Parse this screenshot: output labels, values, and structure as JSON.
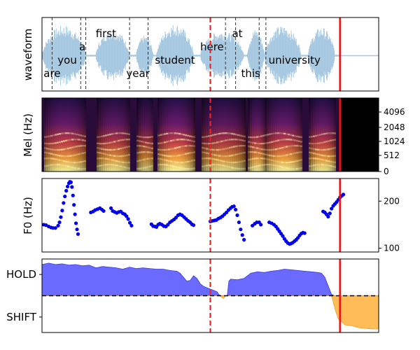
{
  "colors": {
    "waveform": "#a6c8e0",
    "word_boundary": "#333333",
    "current_time_marker": "#ee2222",
    "end_marker": "#ee1111",
    "f0_points": "#0000ee",
    "hold_fill": "#5050ff",
    "shift_fill": "#ffb545",
    "threshold_line": "#000000",
    "spectrogram_background": "#000000"
  },
  "chart_data": [
    {
      "type": "area",
      "panel": "waveform",
      "ylabel": "waveform",
      "x_range": [
        0,
        1
      ],
      "words": [
        {
          "text": "are",
          "x": 0.03
        },
        {
          "text": "you",
          "x": 0.075
        },
        {
          "text": "a",
          "x": 0.12
        },
        {
          "text": "first",
          "x": 0.19
        },
        {
          "text": "year",
          "x": 0.285
        },
        {
          "text": "student",
          "x": 0.395
        },
        {
          "text": "here",
          "x": 0.505
        },
        {
          "text": "at",
          "x": 0.58
        },
        {
          "text": "this",
          "x": 0.62
        },
        {
          "text": "university",
          "x": 0.75
        }
      ],
      "word_boundaries": [
        0.03,
        0.115,
        0.13,
        0.26,
        0.315,
        0.545,
        0.575,
        0.645,
        0.665
      ],
      "current_time_marker": 0.5,
      "end_marker": 0.885
    },
    {
      "type": "heatmap",
      "panel": "mel-spectrogram",
      "ylabel": "Mel (Hz)",
      "y_ticks": [
        "0",
        "512",
        "1024",
        "2048",
        "4096"
      ],
      "x_range": [
        0,
        1
      ],
      "current_time_marker": 0.5,
      "end_marker": 0.885
    },
    {
      "type": "scatter",
      "panel": "f0",
      "ylabel": "F0 (Hz)",
      "y_ticks": [
        100,
        200
      ],
      "ylim": [
        92,
        248
      ],
      "x_range": [
        0,
        1
      ],
      "series": [
        {
          "points": [
            [
              0.005,
              150
            ],
            [
              0.012,
              149
            ],
            [
              0.02,
              146
            ],
            [
              0.027,
              144
            ],
            [
              0.033,
              143
            ],
            [
              0.04,
              143
            ],
            [
              0.048,
              148
            ],
            [
              0.052,
              155
            ],
            [
              0.056,
              166
            ],
            [
              0.06,
              180
            ],
            [
              0.064,
              196
            ],
            [
              0.068,
              210
            ],
            [
              0.072,
              222
            ],
            [
              0.076,
              231
            ],
            [
              0.08,
              238
            ],
            [
              0.083,
              241
            ],
            [
              0.086,
              240
            ],
            [
              0.089,
              230
            ],
            [
              0.092,
              212
            ],
            [
              0.095,
              192
            ],
            [
              0.098,
              172
            ],
            [
              0.101,
              153
            ],
            [
              0.104,
              140
            ],
            [
              0.107,
              130
            ],
            [
              0.145,
              176
            ],
            [
              0.152,
              178
            ],
            [
              0.158,
              181
            ],
            [
              0.165,
              183
            ],
            [
              0.172,
              185
            ],
            [
              0.178,
              182
            ],
            [
              0.183,
              179
            ],
            [
              0.205,
              185
            ],
            [
              0.21,
              179
            ],
            [
              0.216,
              177
            ],
            [
              0.222,
              175
            ],
            [
              0.228,
              177
            ],
            [
              0.234,
              178
            ],
            [
              0.24,
              174
            ],
            [
              0.246,
              172
            ],
            [
              0.251,
              168
            ],
            [
              0.256,
              162
            ],
            [
              0.261,
              154
            ],
            [
              0.266,
              148
            ],
            [
              0.325,
              151
            ],
            [
              0.33,
              147
            ],
            [
              0.336,
              146
            ],
            [
              0.34,
              145
            ],
            [
              0.345,
              150
            ],
            [
              0.35,
              152
            ],
            [
              0.356,
              150
            ],
            [
              0.362,
              147
            ],
            [
              0.368,
              146
            ],
            [
              0.374,
              150
            ],
            [
              0.38,
              155
            ],
            [
              0.386,
              158
            ],
            [
              0.392,
              161
            ],
            [
              0.398,
              165
            ],
            [
              0.404,
              170
            ],
            [
              0.41,
              172
            ],
            [
              0.416,
              170
            ],
            [
              0.422,
              166
            ],
            [
              0.428,
              162
            ],
            [
              0.434,
              158
            ],
            [
              0.44,
              155
            ],
            [
              0.445,
              151
            ],
            [
              0.45,
              149
            ],
            [
              0.5,
              157
            ],
            [
              0.506,
              158
            ],
            [
              0.512,
              159
            ],
            [
              0.518,
              160
            ],
            [
              0.524,
              163
            ],
            [
              0.53,
              165
            ],
            [
              0.536,
              168
            ],
            [
              0.542,
              172
            ],
            [
              0.548,
              176
            ],
            [
              0.554,
              181
            ],
            [
              0.56,
              185
            ],
            [
              0.565,
              188
            ],
            [
              0.57,
              189
            ],
            [
              0.575,
              182
            ],
            [
              0.58,
              170
            ],
            [
              0.585,
              155
            ],
            [
              0.59,
              140
            ],
            [
              0.595,
              128
            ],
            [
              0.6,
              118
            ],
            [
              0.625,
              148
            ],
            [
              0.632,
              152
            ],
            [
              0.638,
              155
            ],
            [
              0.645,
              155
            ],
            [
              0.65,
              150
            ],
            [
              0.675,
              155
            ],
            [
              0.682,
              153
            ],
            [
              0.689,
              150
            ],
            [
              0.695,
              146
            ],
            [
              0.7,
              141
            ],
            [
              0.705,
              136
            ],
            [
              0.71,
              131
            ],
            [
              0.715,
              126
            ],
            [
              0.72,
              120
            ],
            [
              0.725,
              115
            ],
            [
              0.73,
              111
            ],
            [
              0.735,
              109
            ],
            [
              0.74,
              110
            ],
            [
              0.745,
              112
            ],
            [
              0.75,
              115
            ],
            [
              0.755,
              118
            ],
            [
              0.76,
              122
            ],
            [
              0.765,
              127
            ],
            [
              0.77,
              131
            ],
            [
              0.775,
              133
            ],
            [
              0.78,
              132
            ],
            [
              0.835,
              178
            ],
            [
              0.84,
              176
            ],
            [
              0.845,
              172
            ],
            [
              0.85,
              167
            ],
            [
              0.855,
              174
            ],
            [
              0.86,
              184
            ],
            [
              0.865,
              190
            ],
            [
              0.87,
              194
            ],
            [
              0.875,
              198
            ],
            [
              0.88,
              203
            ],
            [
              0.885,
              208
            ],
            [
              0.89,
              211
            ],
            [
              0.895,
              214
            ]
          ]
        }
      ],
      "current_time_marker": 0.5,
      "end_marker": 0.885
    },
    {
      "type": "area",
      "panel": "turn-taking",
      "y_tick_labels": [
        "HOLD",
        "SHIFT"
      ],
      "threshold": 0.5,
      "x_range": [
        0,
        1
      ],
      "series": [
        {
          "name": "HOLD",
          "values": [
            [
              0.0,
              0.97
            ],
            [
              0.02,
              0.99
            ],
            [
              0.04,
              0.97
            ],
            [
              0.06,
              0.98
            ],
            [
              0.08,
              0.96
            ],
            [
              0.1,
              0.97
            ],
            [
              0.12,
              0.95
            ],
            [
              0.14,
              0.96
            ],
            [
              0.16,
              0.92
            ],
            [
              0.18,
              0.94
            ],
            [
              0.2,
              0.93
            ],
            [
              0.22,
              0.92
            ],
            [
              0.24,
              0.9
            ],
            [
              0.26,
              0.93
            ],
            [
              0.28,
              0.91
            ],
            [
              0.3,
              0.92
            ],
            [
              0.32,
              0.91
            ],
            [
              0.34,
              0.9
            ],
            [
              0.36,
              0.9
            ],
            [
              0.38,
              0.88
            ],
            [
              0.4,
              0.87
            ],
            [
              0.41,
              0.84
            ],
            [
              0.42,
              0.78
            ],
            [
              0.43,
              0.72
            ],
            [
              0.44,
              0.73
            ],
            [
              0.45,
              0.8
            ],
            [
              0.46,
              0.76
            ],
            [
              0.47,
              0.68
            ],
            [
              0.48,
              0.64
            ],
            [
              0.49,
              0.62
            ],
            [
              0.5,
              0.6
            ],
            [
              0.51,
              0.58
            ],
            [
              0.52,
              0.56
            ],
            [
              0.525,
              0.52
            ],
            [
              0.53,
              0.5
            ],
            [
              0.55,
              0.5
            ],
            [
              0.555,
              0.72
            ],
            [
              0.56,
              0.75
            ],
            [
              0.58,
              0.74
            ],
            [
              0.6,
              0.76
            ],
            [
              0.62,
              0.84
            ],
            [
              0.64,
              0.86
            ],
            [
              0.66,
              0.85
            ],
            [
              0.68,
              0.87
            ],
            [
              0.7,
              0.88
            ],
            [
              0.72,
              0.9
            ],
            [
              0.74,
              0.89
            ],
            [
              0.76,
              0.88
            ],
            [
              0.78,
              0.87
            ],
            [
              0.8,
              0.86
            ],
            [
              0.82,
              0.85
            ],
            [
              0.83,
              0.84
            ],
            [
              0.84,
              0.78
            ],
            [
              0.85,
              0.65
            ],
            [
              0.86,
              0.52
            ],
            [
              0.87,
              0.5
            ],
            [
              1.0,
              0.5
            ]
          ]
        },
        {
          "name": "SHIFT",
          "values": [
            [
              0.0,
              0.5
            ],
            [
              0.53,
              0.5
            ],
            [
              0.535,
              0.47
            ],
            [
              0.54,
              0.46
            ],
            [
              0.545,
              0.5
            ],
            [
              0.86,
              0.5
            ],
            [
              0.87,
              0.3
            ],
            [
              0.88,
              0.15
            ],
            [
              0.9,
              0.06
            ],
            [
              0.92,
              0.05
            ],
            [
              0.94,
              0.02
            ],
            [
              0.96,
              0.01
            ],
            [
              0.98,
              0.0
            ],
            [
              1.0,
              0.0
            ]
          ]
        }
      ],
      "current_time_marker": 0.5,
      "end_marker": 0.885
    }
  ]
}
